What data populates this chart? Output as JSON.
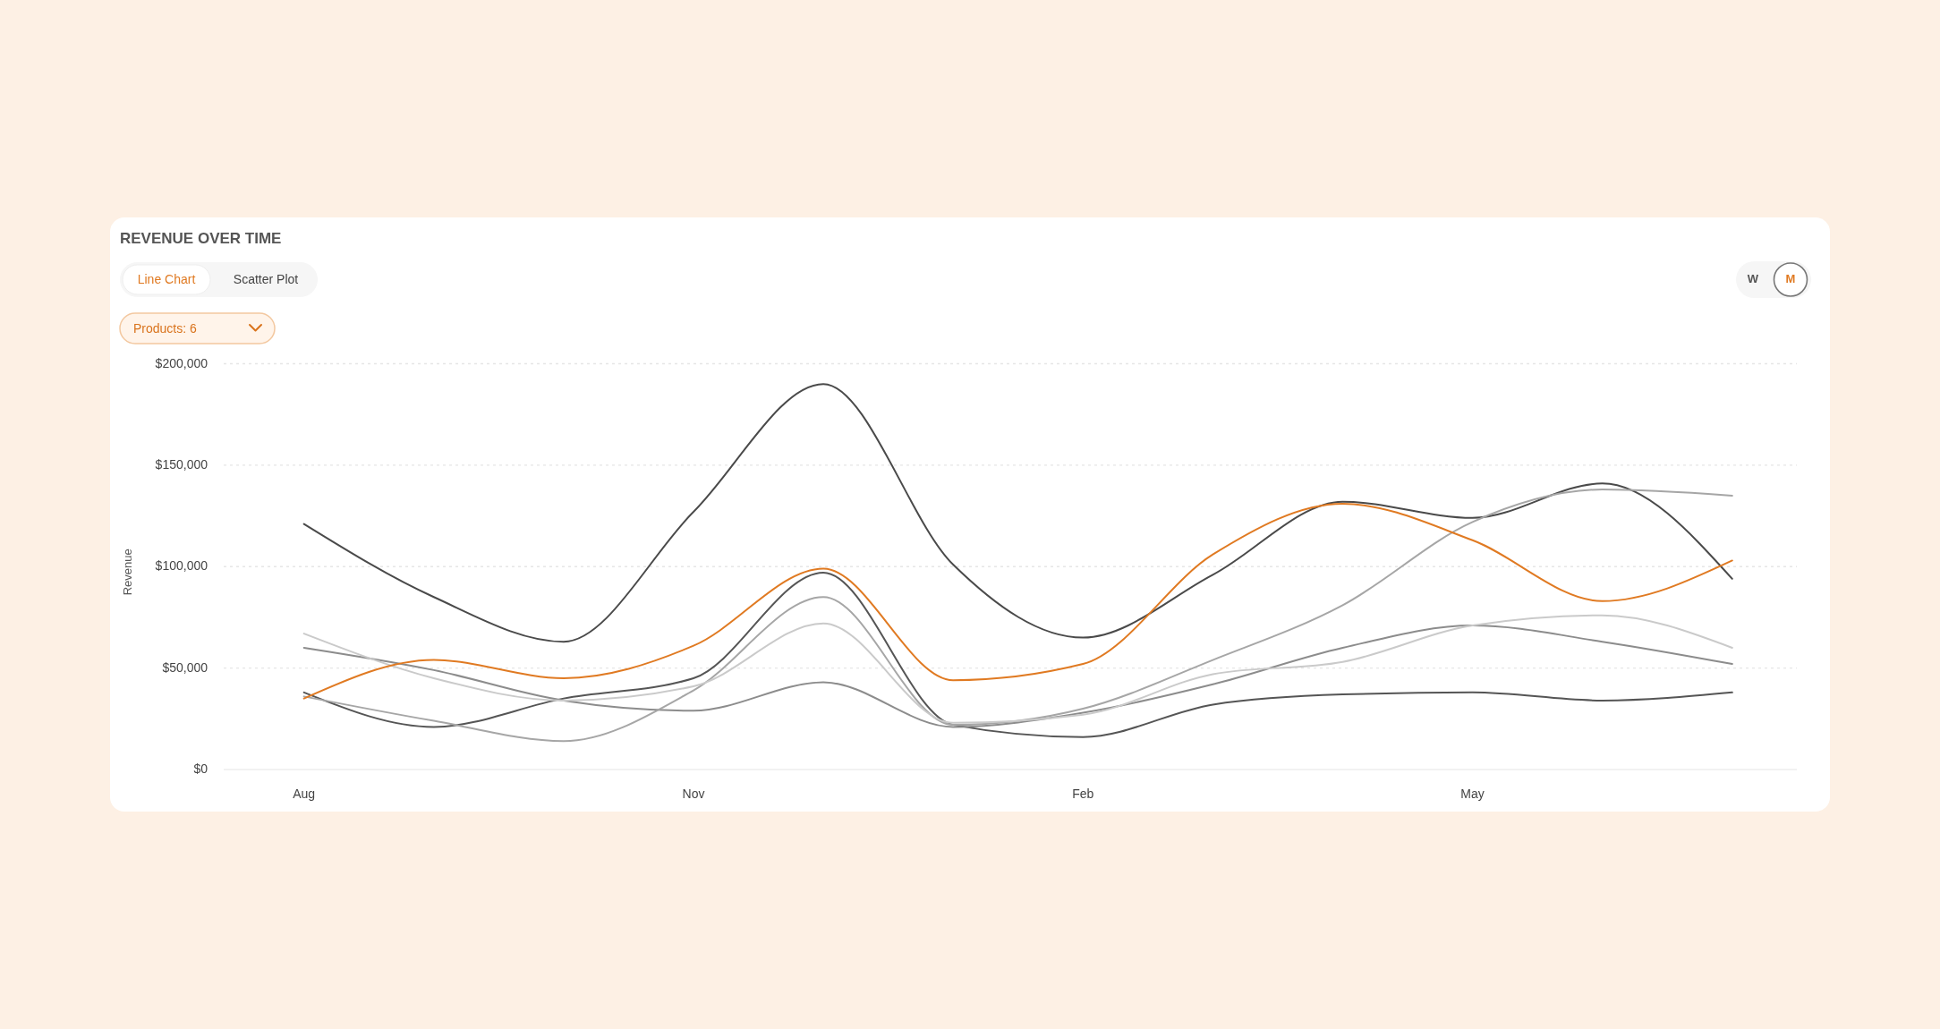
{
  "chart_data": {
    "type": "line",
    "title": "REVENUE OVER TIME",
    "ylabel": "Revenue",
    "annotations": [
      "Line Chart",
      "Scatter Plot",
      "Products: 6",
      "W",
      "M"
    ],
    "categories": [
      "Aug",
      null,
      null,
      "Nov",
      null,
      null,
      "Feb",
      null,
      null,
      "May",
      null,
      null
    ],
    "ylim": [
      0,
      200000
    ],
    "yticks": [
      {
        "value": 0,
        "label": "$0"
      },
      {
        "value": 50000,
        "label": "$50,000"
      },
      {
        "value": 100000,
        "label": "$100,000"
      },
      {
        "value": 150000,
        "label": "$150,000"
      },
      {
        "value": 200000,
        "label": "$200,000"
      }
    ],
    "grid": "y",
    "series": [
      {
        "color": "#4a4a4a",
        "values": [
          121000,
          85000,
          63000,
          127000,
          190000,
          101000,
          65000,
          96000,
          132000,
          124000,
          141000,
          94000
        ]
      },
      {
        "color": "#555555",
        "values": [
          38000,
          21000,
          35000,
          45000,
          97000,
          22000,
          16000,
          32000,
          37000,
          38000,
          34000,
          38000
        ]
      },
      {
        "color": "#8c8c8c",
        "values": [
          60000,
          49000,
          34000,
          29000,
          43000,
          21000,
          28000,
          42000,
          60000,
          71000,
          63000,
          52000
        ]
      },
      {
        "color": "#a6a6a6",
        "values": [
          36000,
          24000,
          14000,
          39000,
          85000,
          22000,
          30000,
          54000,
          81000,
          122000,
          138000,
          135000
        ]
      },
      {
        "color": "#cacaca",
        "values": [
          67000,
          45000,
          34000,
          41000,
          72000,
          23000,
          27000,
          47000,
          53000,
          71000,
          76000,
          60000
        ]
      },
      {
        "color": "#e07a22",
        "values": [
          35000,
          54000,
          45000,
          61000,
          99000,
          44000,
          52000,
          106000,
          131000,
          113000,
          83000,
          103000
        ]
      }
    ]
  }
}
